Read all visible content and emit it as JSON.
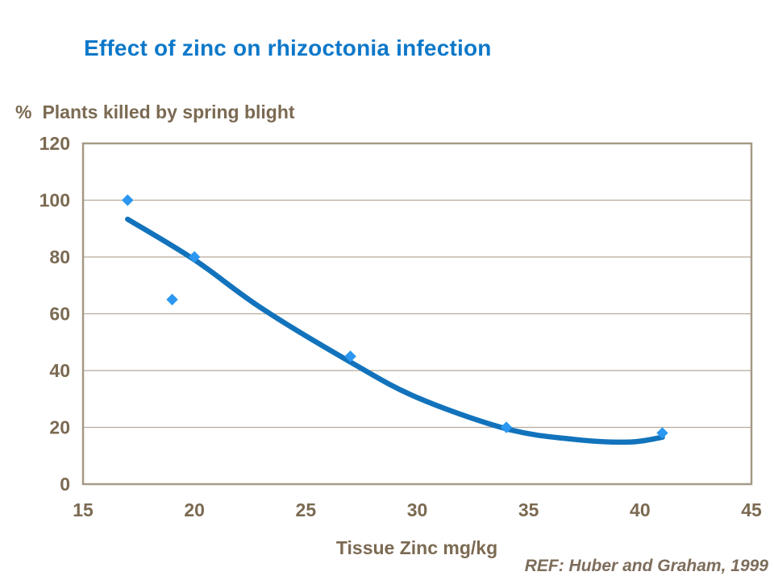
{
  "title": "Effect of zinc on rhizoctonia infection",
  "y_axis_caption": {
    "symbol": "%",
    "text": "Plants killed by spring blight"
  },
  "x_axis_title": "Tissue Zinc mg/kg",
  "reference": "REF: Huber and Graham, 1999",
  "colors": {
    "title": "#0d78c9",
    "axis_text": "#7b6a52",
    "gridline": "#b6aa99",
    "plot_border": "#a59987",
    "trendline": "#1273bc",
    "marker": "#2b97f0",
    "reference": "#7d6d5b"
  },
  "chart_data": {
    "type": "scatter",
    "title": "Effect of zinc on rhizoctonia infection",
    "xlabel": "Tissue Zinc mg/kg",
    "ylabel": "% Plants killed by spring blight",
    "xlim": [
      15,
      45
    ],
    "ylim": [
      0,
      120
    ],
    "x_ticks": [
      15,
      20,
      25,
      30,
      35,
      40,
      45
    ],
    "y_ticks": [
      0,
      20,
      40,
      60,
      80,
      100,
      120
    ],
    "grid": "horizontal",
    "legend": "none",
    "points": [
      {
        "x": 17,
        "y": 100
      },
      {
        "x": 19,
        "y": 65
      },
      {
        "x": 20,
        "y": 80
      },
      {
        "x": 27,
        "y": 45
      },
      {
        "x": 34,
        "y": 20
      },
      {
        "x": 41,
        "y": 18
      }
    ],
    "trendline": {
      "type": "polynomial",
      "points": [
        [
          17,
          93.3
        ],
        [
          20,
          79
        ],
        [
          23,
          62
        ],
        [
          27,
          43
        ],
        [
          30,
          30.5
        ],
        [
          34,
          19.5
        ],
        [
          37,
          15.8
        ],
        [
          39.5,
          14.8
        ],
        [
          41,
          16.5
        ]
      ]
    }
  }
}
